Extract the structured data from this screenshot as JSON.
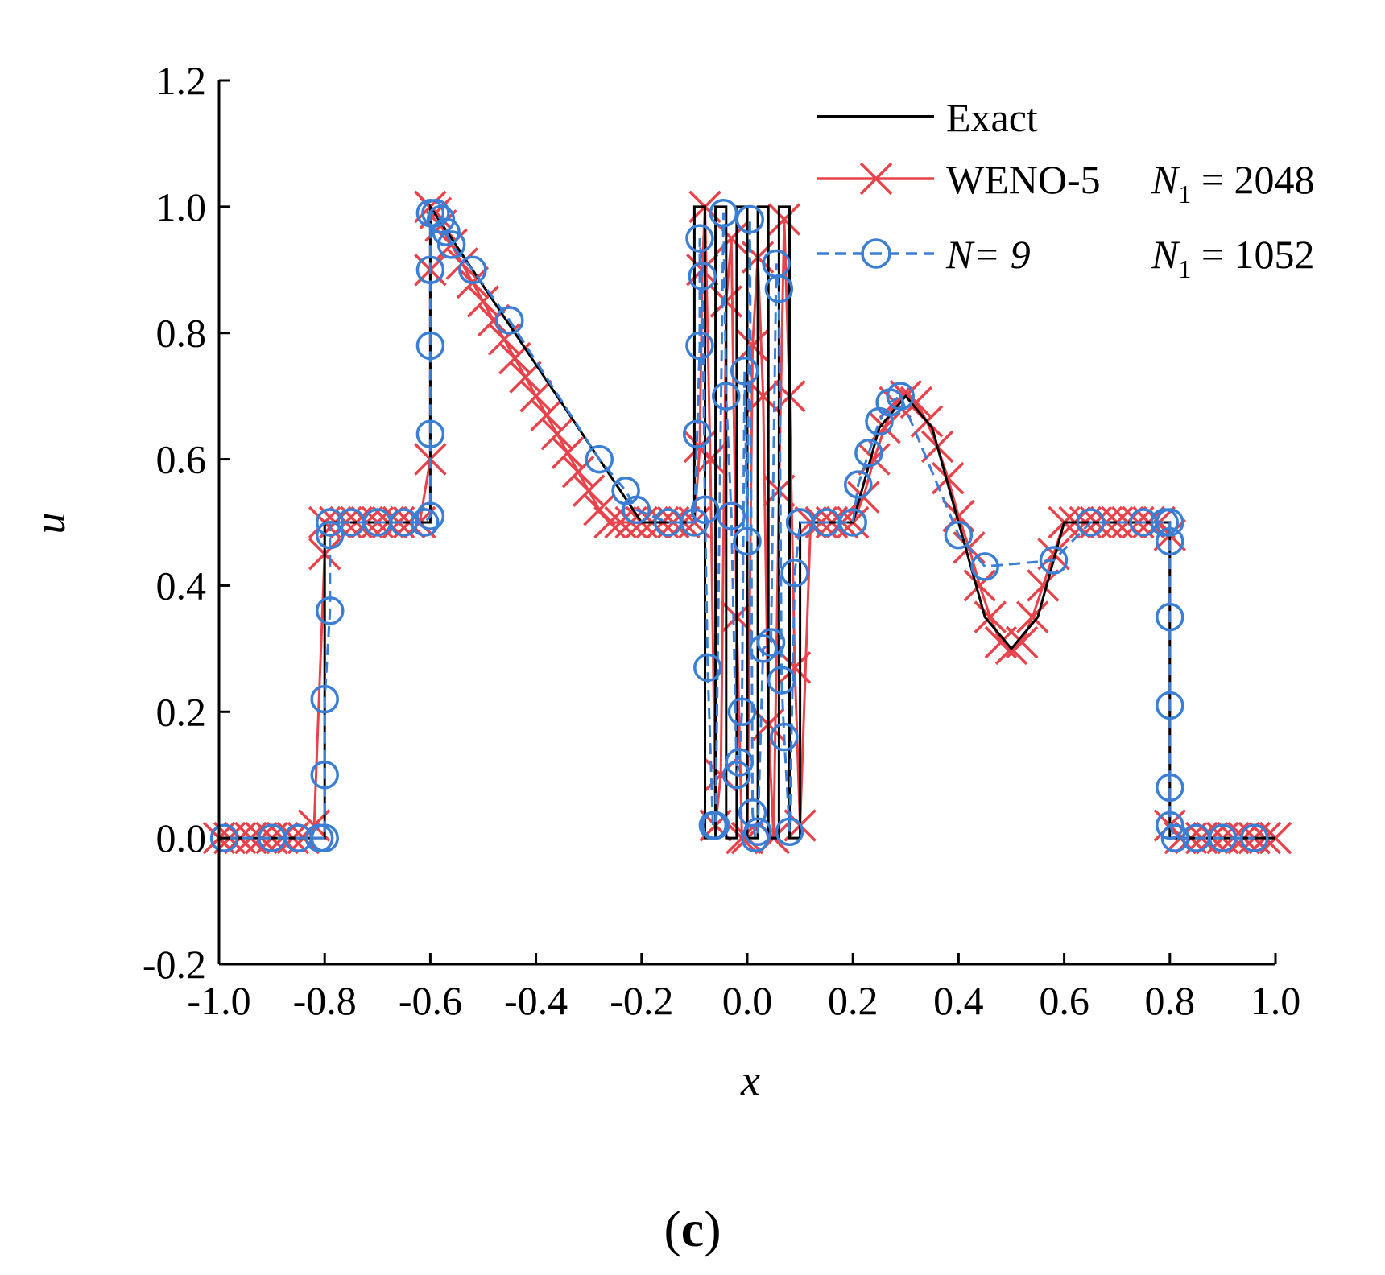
{
  "chart_data": {
    "type": "line",
    "panel_label": "(c)",
    "panel_label_open": "(",
    "panel_letter": "c",
    "panel_label_close": ")",
    "xlabel": "x",
    "ylabel": "u",
    "xlim": [
      -1.0,
      1.0
    ],
    "ylim": [
      -0.2,
      1.2
    ],
    "xticks": [
      -1.0,
      -0.8,
      -0.6,
      -0.4,
      -0.2,
      0.0,
      0.2,
      0.4,
      0.6,
      0.8,
      1.0
    ],
    "xtick_labels": [
      "-1.0",
      "-0.8",
      "-0.6",
      "-0.4",
      "-0.2",
      "0.0",
      "0.2",
      "0.4",
      "0.6",
      "0.8",
      "1.0"
    ],
    "yticks": [
      -0.2,
      0.0,
      0.2,
      0.4,
      0.6,
      0.8,
      1.0,
      1.2
    ],
    "ytick_labels": [
      "-0.2",
      "0.0",
      "0.2",
      "0.4",
      "0.6",
      "0.8",
      "1.0",
      "1.2"
    ],
    "legend_position": "top-right",
    "legend": [
      {
        "label": "Exact",
        "suffix": "",
        "style": "solid",
        "marker": "none",
        "color": "#000000"
      },
      {
        "label": "WENO-5",
        "suffix": " = 2048",
        "style": "solid",
        "marker": "x",
        "color": "#e8434a"
      },
      {
        "label": "N= 9",
        "suffix": " = 1052",
        "style": "dashed",
        "marker": "circle",
        "color": "#3a7fd5"
      }
    ],
    "legend_sub_var": "N",
    "legend_sub_index": "1",
    "series": [
      {
        "name": "Exact",
        "color": "#000000",
        "x": [
          -1.0,
          -0.8,
          -0.8,
          -0.6,
          -0.6,
          -0.2,
          -0.2,
          -0.1,
          -0.1,
          -0.08,
          -0.08,
          -0.06,
          -0.06,
          -0.04,
          -0.04,
          -0.02,
          -0.02,
          0.0,
          0.0,
          0.02,
          0.02,
          0.04,
          0.04,
          0.06,
          0.06,
          0.08,
          0.08,
          0.1,
          0.1,
          0.2,
          0.2,
          0.25,
          0.3,
          0.35,
          0.4,
          0.45,
          0.5,
          0.55,
          0.6,
          0.6,
          0.8,
          0.8,
          1.0
        ],
        "y": [
          0.0,
          0.0,
          0.5,
          0.5,
          1.0,
          0.5,
          0.5,
          0.5,
          1.0,
          1.0,
          0.0,
          0.0,
          1.0,
          1.0,
          0.0,
          0.0,
          1.0,
          1.0,
          0.0,
          0.0,
          1.0,
          1.0,
          0.0,
          0.0,
          1.0,
          1.0,
          0.0,
          0.0,
          0.5,
          0.5,
          0.5,
          0.65,
          0.7,
          0.65,
          0.5,
          0.35,
          0.3,
          0.35,
          0.5,
          0.5,
          0.5,
          0.0,
          0.0
        ]
      },
      {
        "name": "WENO-5 N1 = 2048",
        "color": "#e8434a",
        "x": [
          -1.0,
          -0.98,
          -0.96,
          -0.94,
          -0.92,
          -0.9,
          -0.88,
          -0.86,
          -0.84,
          -0.82,
          -0.8,
          -0.8,
          -0.78,
          -0.76,
          -0.74,
          -0.72,
          -0.7,
          -0.68,
          -0.66,
          -0.64,
          -0.62,
          -0.6,
          -0.6,
          -0.6,
          -0.59,
          -0.58,
          -0.56,
          -0.54,
          -0.52,
          -0.5,
          -0.48,
          -0.46,
          -0.44,
          -0.42,
          -0.4,
          -0.38,
          -0.36,
          -0.34,
          -0.32,
          -0.3,
          -0.28,
          -0.26,
          -0.24,
          -0.22,
          -0.2,
          -0.18,
          -0.16,
          -0.14,
          -0.12,
          -0.1,
          -0.09,
          -0.085,
          -0.08,
          -0.07,
          -0.06,
          -0.05,
          -0.04,
          -0.03,
          -0.02,
          -0.01,
          0.0,
          0.01,
          0.02,
          0.03,
          0.04,
          0.05,
          0.06,
          0.07,
          0.08,
          0.09,
          0.1,
          0.12,
          0.14,
          0.16,
          0.18,
          0.2,
          0.22,
          0.24,
          0.26,
          0.28,
          0.3,
          0.32,
          0.34,
          0.36,
          0.38,
          0.4,
          0.42,
          0.44,
          0.46,
          0.48,
          0.5,
          0.52,
          0.54,
          0.56,
          0.58,
          0.6,
          0.62,
          0.64,
          0.66,
          0.68,
          0.7,
          0.72,
          0.74,
          0.76,
          0.78,
          0.8,
          0.8,
          0.82,
          0.84,
          0.86,
          0.88,
          0.9,
          0.92,
          0.94,
          0.96,
          0.98,
          1.0
        ],
        "y": [
          0.0,
          0.0,
          0.0,
          0.0,
          0.0,
          0.0,
          0.0,
          0.0,
          0.0,
          0.02,
          0.45,
          0.5,
          0.5,
          0.5,
          0.5,
          0.5,
          0.5,
          0.5,
          0.5,
          0.5,
          0.5,
          0.6,
          0.9,
          1.0,
          0.99,
          0.97,
          0.94,
          0.91,
          0.88,
          0.85,
          0.82,
          0.79,
          0.76,
          0.73,
          0.7,
          0.67,
          0.64,
          0.61,
          0.58,
          0.55,
          0.52,
          0.5,
          0.5,
          0.5,
          0.5,
          0.5,
          0.5,
          0.5,
          0.5,
          0.5,
          0.62,
          0.9,
          1.0,
          0.6,
          0.02,
          0.1,
          0.85,
          0.95,
          0.35,
          0.0,
          0.0,
          0.78,
          0.92,
          0.7,
          0.18,
          0.0,
          0.55,
          0.98,
          0.7,
          0.27,
          0.02,
          0.5,
          0.5,
          0.5,
          0.5,
          0.5,
          0.54,
          0.6,
          0.65,
          0.69,
          0.7,
          0.69,
          0.66,
          0.62,
          0.57,
          0.51,
          0.46,
          0.4,
          0.35,
          0.31,
          0.3,
          0.31,
          0.35,
          0.4,
          0.45,
          0.5,
          0.5,
          0.5,
          0.5,
          0.5,
          0.5,
          0.5,
          0.5,
          0.5,
          0.5,
          0.48,
          0.02,
          0.0,
          0.0,
          0.0,
          0.0,
          0.0,
          0.0,
          0.0,
          0.0,
          0.0,
          0.0
        ]
      },
      {
        "name": "N= 9 N1 = 1052",
        "color": "#3a7fd5",
        "x": [
          -0.99,
          -0.9,
          -0.85,
          -0.81,
          -0.8,
          -0.8,
          -0.8,
          -0.79,
          -0.79,
          -0.79,
          -0.75,
          -0.7,
          -0.65,
          -0.61,
          -0.6,
          -0.6,
          -0.6,
          -0.6,
          -0.6,
          -0.59,
          -0.58,
          -0.57,
          -0.56,
          -0.52,
          -0.45,
          -0.28,
          -0.23,
          -0.21,
          -0.15,
          -0.1,
          -0.095,
          -0.09,
          -0.09,
          -0.085,
          -0.08,
          -0.075,
          -0.065,
          -0.06,
          -0.045,
          -0.04,
          -0.03,
          -0.02,
          -0.015,
          -0.01,
          -0.005,
          0.0,
          0.005,
          0.01,
          0.015,
          0.02,
          0.03,
          0.045,
          0.055,
          0.06,
          0.065,
          0.07,
          0.08,
          0.09,
          0.1,
          0.1,
          0.15,
          0.2,
          0.21,
          0.23,
          0.25,
          0.27,
          0.29,
          0.4,
          0.45,
          0.58,
          0.65,
          0.75,
          0.79,
          0.8,
          0.8,
          0.8,
          0.8,
          0.8,
          0.8,
          0.81,
          0.85,
          0.9,
          0.96
        ],
        "y": [
          0.0,
          0.0,
          0.0,
          0.0,
          0.0,
          0.1,
          0.22,
          0.36,
          0.48,
          0.5,
          0.5,
          0.5,
          0.5,
          0.5,
          0.51,
          0.64,
          0.78,
          0.9,
          0.99,
          0.99,
          0.98,
          0.96,
          0.94,
          0.9,
          0.82,
          0.6,
          0.55,
          0.52,
          0.5,
          0.5,
          0.64,
          0.78,
          0.95,
          0.89,
          0.52,
          0.27,
          0.02,
          0.02,
          0.99,
          0.7,
          0.51,
          0.1,
          0.12,
          0.2,
          0.74,
          0.47,
          0.98,
          0.04,
          0.0,
          0.01,
          0.3,
          0.31,
          0.91,
          0.87,
          0.25,
          0.16,
          0.01,
          0.42,
          0.5,
          0.5,
          0.5,
          0.5,
          0.56,
          0.61,
          0.66,
          0.69,
          0.7,
          0.48,
          0.43,
          0.44,
          0.5,
          0.5,
          0.5,
          0.5,
          0.47,
          0.35,
          0.21,
          0.08,
          0.02,
          0.0,
          0.0,
          0.0,
          0.0
        ]
      }
    ]
  }
}
